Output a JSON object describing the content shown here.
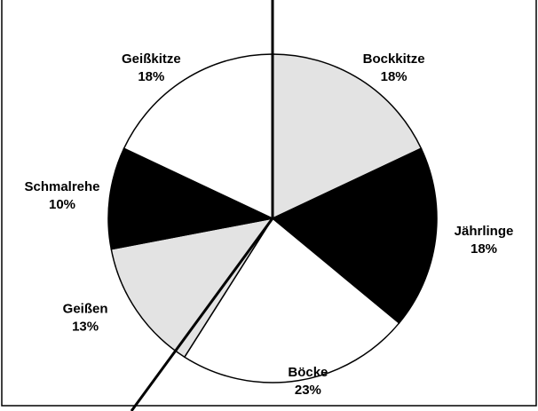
{
  "chart_data": {
    "type": "pie",
    "categories": [
      "Bockkitze",
      "Jährlinge",
      "Böcke",
      "Geißen",
      "Schmalrehe",
      "Geißkitze"
    ],
    "values": [
      18,
      18,
      23,
      13,
      10,
      18
    ],
    "value_labels": [
      "18%",
      "18%",
      "23%",
      "13%",
      "10%",
      "18%"
    ],
    "colors": [
      "#e3e3e3",
      "#000000",
      "#ffffff",
      "#e3e3e3",
      "#000000",
      "#ffffff"
    ]
  }
}
